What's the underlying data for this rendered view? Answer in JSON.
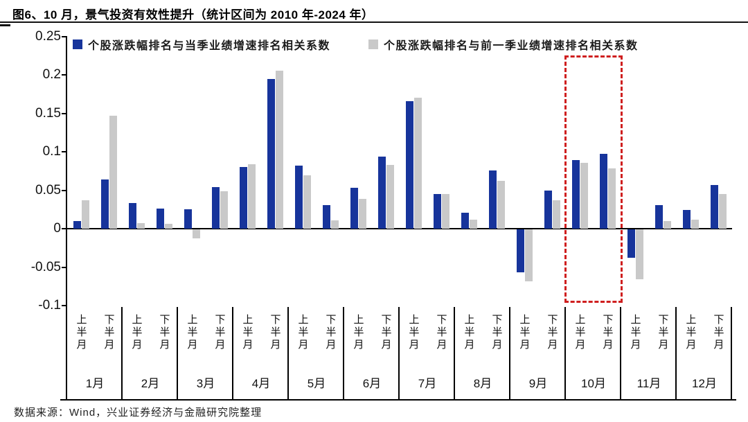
{
  "page": {
    "title": "图6、10 月，景气投资有效性提升（统计区间为 2010 年-2024 年）",
    "footer": "数据来源：Wind，兴业证券经济与金融研究院整理"
  },
  "chart_data": {
    "type": "bar",
    "title": "图6、10 月，景气投资有效性提升（统计区间为 2010 年-2024 年）",
    "legend_position": "top",
    "grid": false,
    "ylim": [
      -0.1,
      0.25
    ],
    "ytick_labels": [
      "0.25",
      "0.2",
      "0.15",
      "0.1",
      "0.05",
      "0",
      "-0.05",
      "-0.1"
    ],
    "ytick_values": [
      0.25,
      0.2,
      0.15,
      0.1,
      0.05,
      0,
      -0.05,
      -0.1
    ],
    "months": [
      "1月",
      "2月",
      "3月",
      "4月",
      "5月",
      "6月",
      "7月",
      "8月",
      "9月",
      "10月",
      "11月",
      "12月"
    ],
    "half_labels": [
      "上半月",
      "下半月"
    ],
    "series": [
      {
        "name": "个股涨跌幅排名与当季业绩增速排名相关系数",
        "color": "#17349B",
        "values": [
          0.01,
          0.064,
          0.033,
          0.026,
          0.025,
          0.054,
          0.08,
          0.195,
          0.082,
          0.031,
          0.053,
          0.094,
          0.166,
          0.045,
          0.021,
          0.076,
          -0.056,
          0.05,
          0.089,
          0.097,
          -0.037,
          0.031,
          0.024,
          0.057
        ]
      },
      {
        "name": "个股涨跌幅排名与前一季业绩增速排名相关系数",
        "color": "#C9C9C9",
        "values": [
          0.037,
          0.147,
          0.007,
          0.006,
          -0.012,
          0.049,
          0.084,
          0.205,
          0.069,
          0.011,
          0.039,
          0.083,
          0.17,
          0.045,
          0.012,
          0.062,
          -0.068,
          0.037,
          0.086,
          0.078,
          -0.065,
          0.01,
          0.012,
          0.045
        ]
      }
    ],
    "highlight": {
      "month": "10月",
      "style": "dashed-box",
      "color": "#CF1F1F"
    }
  }
}
